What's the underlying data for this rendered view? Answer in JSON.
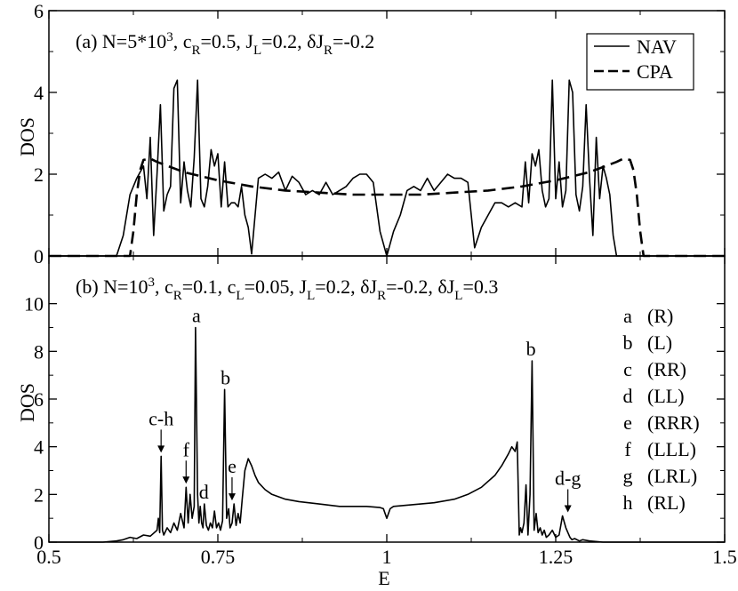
{
  "chart_data": [
    {
      "type": "line",
      "panel_title": {
        "prefix": "(a) N=5*10",
        "exp": "3",
        "parts": [
          {
            "t": ", c",
            "sub": "R",
            "after": "=0.5"
          },
          {
            "t": ", J",
            "sub": "L",
            "after": "=0.2"
          },
          {
            "t": ", δJ",
            "sub": "R",
            "after": "=-0.2"
          }
        ]
      },
      "ylabel": "DOS",
      "xlim": [
        0.5,
        1.5
      ],
      "ylim": [
        0,
        6
      ],
      "yticks": [
        0,
        2,
        4,
        6
      ],
      "legend": {
        "position": "top-right",
        "entries": [
          "NAV",
          "CPA"
        ]
      },
      "series": [
        {
          "name": "NAV",
          "style": "solid",
          "x": [
            0.5,
            0.6,
            0.61,
            0.62,
            0.63,
            0.64,
            0.645,
            0.65,
            0.655,
            0.66,
            0.665,
            0.67,
            0.675,
            0.68,
            0.685,
            0.69,
            0.695,
            0.7,
            0.705,
            0.71,
            0.715,
            0.72,
            0.725,
            0.73,
            0.735,
            0.74,
            0.745,
            0.75,
            0.755,
            0.76,
            0.765,
            0.77,
            0.775,
            0.78,
            0.785,
            0.79,
            0.795,
            0.8,
            0.81,
            0.82,
            0.83,
            0.84,
            0.85,
            0.86,
            0.87,
            0.88,
            0.89,
            0.9,
            0.91,
            0.92,
            0.93,
            0.94,
            0.95,
            0.96,
            0.97,
            0.98,
            0.99,
            1.0,
            1.01,
            1.02,
            1.03,
            1.04,
            1.05,
            1.06,
            1.07,
            1.08,
            1.09,
            1.1,
            1.11,
            1.12,
            1.13,
            1.14,
            1.15,
            1.16,
            1.17,
            1.18,
            1.19,
            1.2,
            1.205,
            1.21,
            1.215,
            1.22,
            1.225,
            1.23,
            1.235,
            1.24,
            1.245,
            1.25,
            1.255,
            1.26,
            1.265,
            1.27,
            1.275,
            1.28,
            1.285,
            1.29,
            1.295,
            1.3,
            1.305,
            1.31,
            1.315,
            1.32,
            1.325,
            1.33,
            1.335,
            1.34,
            1.345,
            1.35,
            1.355,
            1.36,
            1.37,
            1.38,
            1.39,
            1.4,
            1.5
          ],
          "y": [
            0,
            0,
            0.5,
            1.5,
            1.9,
            2.2,
            1.4,
            2.9,
            0.5,
            2.0,
            3.7,
            1.1,
            1.5,
            1.7,
            4.1,
            4.3,
            1.3,
            2.3,
            1.6,
            1.2,
            2.4,
            4.3,
            1.4,
            1.2,
            1.7,
            2.6,
            2.2,
            2.5,
            1.2,
            2.3,
            1.2,
            1.3,
            1.3,
            1.2,
            1.7,
            1.0,
            0.7,
            0.05,
            1.9,
            2.0,
            1.9,
            2.05,
            1.6,
            1.95,
            1.8,
            1.5,
            1.6,
            1.5,
            1.8,
            1.5,
            1.6,
            1.7,
            1.9,
            2.0,
            2.0,
            1.8,
            0.6,
            0.0,
            0.6,
            1.0,
            1.6,
            1.7,
            1.6,
            1.9,
            1.6,
            1.8,
            2.0,
            1.9,
            1.9,
            1.8,
            0.2,
            0.7,
            1.0,
            1.3,
            1.3,
            1.2,
            1.3,
            1.2,
            2.3,
            1.3,
            2.5,
            2.2,
            2.6,
            1.6,
            1.2,
            1.4,
            4.3,
            1.4,
            2.3,
            1.2,
            1.6,
            4.3,
            4.0,
            1.5,
            1.1,
            1.7,
            3.7,
            1.9,
            0.5,
            2.9,
            1.4,
            2.2,
            1.9,
            1.5,
            0.5,
            0,
            0,
            0,
            0,
            0,
            0,
            0,
            0,
            0,
            0
          ]
        },
        {
          "name": "CPA",
          "style": "dashed",
          "x": [
            0.5,
            0.62,
            0.625,
            0.63,
            0.635,
            0.64,
            0.65,
            0.66,
            0.7,
            0.75,
            0.8,
            0.85,
            0.9,
            0.95,
            1.0,
            1.05,
            1.1,
            1.15,
            1.2,
            1.25,
            1.3,
            1.34,
            1.35,
            1.36,
            1.365,
            1.37,
            1.375,
            1.38,
            1.5
          ],
          "y": [
            0,
            0,
            0.6,
            1.5,
            2.1,
            2.35,
            2.38,
            2.3,
            2.05,
            1.85,
            1.7,
            1.6,
            1.55,
            1.5,
            1.5,
            1.5,
            1.55,
            1.6,
            1.7,
            1.85,
            2.05,
            2.3,
            2.38,
            2.35,
            2.1,
            1.5,
            0.6,
            0,
            0
          ]
        }
      ]
    },
    {
      "type": "line",
      "panel_title": {
        "prefix": "(b) N=10",
        "exp": "3",
        "parts": [
          {
            "t": ", c",
            "sub": "R",
            "after": "=0.1"
          },
          {
            "t": ", c",
            "sub": "L",
            "after": "=0.05"
          },
          {
            "t": ", J",
            "sub": "L",
            "after": "=0.2"
          },
          {
            "t": ", δJ",
            "sub": "R",
            "after": "=-0.2"
          },
          {
            "t": ", δJ",
            "sub": "L",
            "after": "=0.3"
          }
        ]
      },
      "xlabel": "E",
      "ylabel": "DOS",
      "xlim": [
        0.5,
        1.5
      ],
      "ylim": [
        0,
        12
      ],
      "xticks": [
        "0.5",
        "0.75",
        "1",
        "1.25",
        "1.5"
      ],
      "xtick_values": [
        0.5,
        0.75,
        1.0,
        1.25,
        1.5
      ],
      "yticks": [
        0,
        2,
        4,
        6,
        8,
        10
      ],
      "series": [
        {
          "name": "NAV",
          "style": "solid",
          "x": [
            0.5,
            0.58,
            0.6,
            0.61,
            0.62,
            0.63,
            0.64,
            0.65,
            0.66,
            0.662,
            0.664,
            0.666,
            0.668,
            0.67,
            0.675,
            0.68,
            0.685,
            0.69,
            0.695,
            0.7,
            0.703,
            0.706,
            0.709,
            0.712,
            0.715,
            0.717,
            0.72,
            0.722,
            0.724,
            0.726,
            0.728,
            0.73,
            0.733,
            0.736,
            0.739,
            0.742,
            0.745,
            0.748,
            0.751,
            0.754,
            0.757,
            0.76,
            0.763,
            0.766,
            0.768,
            0.771,
            0.774,
            0.777,
            0.78,
            0.783,
            0.786,
            0.79,
            0.795,
            0.8,
            0.805,
            0.81,
            0.82,
            0.83,
            0.85,
            0.87,
            0.9,
            0.93,
            0.95,
            0.97,
            0.99,
            0.995,
            1.0,
            1.005,
            1.01,
            1.03,
            1.05,
            1.07,
            1.1,
            1.12,
            1.14,
            1.16,
            1.17,
            1.18,
            1.185,
            1.19,
            1.193,
            1.196,
            1.198,
            1.2,
            1.203,
            1.206,
            1.209,
            1.212,
            1.215,
            1.218,
            1.221,
            1.224,
            1.227,
            1.23,
            1.233,
            1.236,
            1.24,
            1.245,
            1.25,
            1.255,
            1.26,
            1.265,
            1.268,
            1.271,
            1.274,
            1.278,
            1.285,
            1.29,
            1.3,
            1.32,
            1.5
          ],
          "y": [
            0,
            0,
            0.05,
            0.1,
            0.2,
            0.15,
            0.3,
            0.25,
            0.5,
            1.0,
            0.4,
            3.6,
            0.5,
            0.3,
            0.6,
            0.4,
            0.8,
            0.5,
            1.2,
            0.6,
            2.3,
            0.8,
            2.0,
            1.0,
            1.5,
            9.0,
            2.0,
            0.8,
            1.5,
            0.8,
            0.6,
            1.6,
            0.7,
            0.5,
            0.8,
            0.6,
            1.3,
            0.6,
            0.8,
            0.5,
            0.9,
            6.4,
            1.0,
            1.4,
            0.6,
            0.8,
            1.6,
            0.7,
            1.2,
            0.8,
            1.8,
            3.0,
            3.5,
            3.2,
            2.8,
            2.5,
            2.2,
            2.0,
            1.8,
            1.7,
            1.6,
            1.5,
            1.5,
            1.5,
            1.45,
            1.4,
            1.0,
            1.4,
            1.5,
            1.55,
            1.6,
            1.65,
            1.8,
            2.0,
            2.3,
            2.8,
            3.2,
            3.7,
            4.0,
            3.8,
            4.2,
            0.3,
            0.6,
            0.4,
            0.8,
            2.4,
            0.3,
            2.0,
            7.6,
            0.5,
            1.2,
            0.4,
            0.6,
            0.3,
            0.5,
            0.2,
            0.3,
            0.5,
            0.2,
            0.3,
            1.1,
            0.6,
            0.4,
            0.2,
            0.1,
            0.15,
            0.05,
            0.1,
            0.05,
            0,
            0
          ]
        }
      ],
      "annotations": [
        {
          "text": "a",
          "x": 0.717,
          "y": 9.0,
          "arrow": false
        },
        {
          "text": "b",
          "x": 0.76,
          "y": 6.4,
          "arrow": false
        },
        {
          "text": "b",
          "x": 1.212,
          "y": 7.6,
          "arrow": false
        },
        {
          "text": "c-h",
          "x": 0.666,
          "y": 3.6,
          "arrow": true
        },
        {
          "text": "f",
          "x": 0.703,
          "y": 2.3,
          "arrow": true
        },
        {
          "text": "d",
          "x": 0.728,
          "y": 1.6,
          "arrow": false
        },
        {
          "text": "e",
          "x": 0.771,
          "y": 1.6,
          "arrow": true
        },
        {
          "text": "d-g",
          "x": 1.268,
          "y": 1.1,
          "arrow": true
        }
      ],
      "key": [
        {
          "letter": "a",
          "code": "(R)"
        },
        {
          "letter": "b",
          "code": "(L)"
        },
        {
          "letter": "c",
          "code": "(RR)"
        },
        {
          "letter": "d",
          "code": "(LL)"
        },
        {
          "letter": "e",
          "code": "(RRR)"
        },
        {
          "letter": "f",
          "code": "(LLL)"
        },
        {
          "letter": "g",
          "code": "(LRL)"
        },
        {
          "letter": "h",
          "code": "(RL)"
        }
      ]
    }
  ]
}
